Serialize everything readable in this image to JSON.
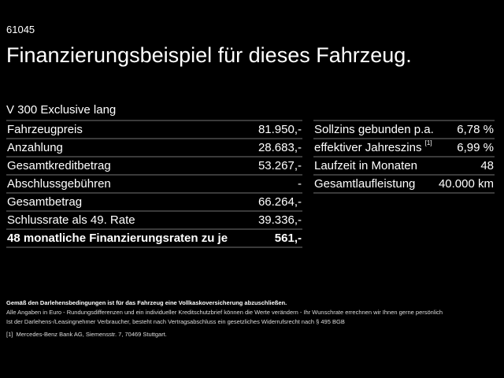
{
  "code": "61045",
  "title": "Finanzierungsbeispiel für dieses Fahrzeug.",
  "model": "V 300 Exclusive lang",
  "left_rows": [
    {
      "label": "Fahrzeugpreis",
      "value": "81.950,-"
    },
    {
      "label": "Anzahlung",
      "value": "28.683,-"
    },
    {
      "label": "Gesamtkreditbetrag",
      "value": "53.267,-"
    },
    {
      "label": "Abschlussgebühren",
      "value": "-"
    },
    {
      "label": "Gesamtbetrag",
      "value": "66.264,-"
    },
    {
      "label": "Schlussrate als 49. Rate",
      "value": "39.336,-"
    },
    {
      "label": "48 monatliche Finanzierungsraten zu je",
      "value": "561,-"
    }
  ],
  "right_rows": [
    {
      "label": "Sollzins gebunden p.a.",
      "value": "6,78 %"
    },
    {
      "label": "effektiver Jahreszins",
      "sup": "[1]",
      "value": "6,99 %"
    },
    {
      "label": "Laufzeit in Monaten",
      "value": "48"
    },
    {
      "label": "Gesamtlaufleistung",
      "value": "40.000 km"
    }
  ],
  "notes": {
    "bold": "Gemäß den Darlehensbedingungen ist für das Fahrzeug eine Vollkaskoversicherung abzuschließen.",
    "line1": "Alle Angaben in Euro - Rundungsdifferenzen und ein individueller Kreditschutzbrief können die Werte verändern - Ihr Wunschrate errechnen wir Ihnen gerne persönlich",
    "line2": "Ist der Darlehens-/Leasingnehmer Verbraucher, besteht nach Vertragsabschluss ein gesetzliches Widerrufsrecht nach § 495 BGB",
    "fn_mark": "[1]",
    "fn_text": "Mercedes-Benz Bank AG, Siemensstr. 7, 70469 Stuttgart."
  }
}
